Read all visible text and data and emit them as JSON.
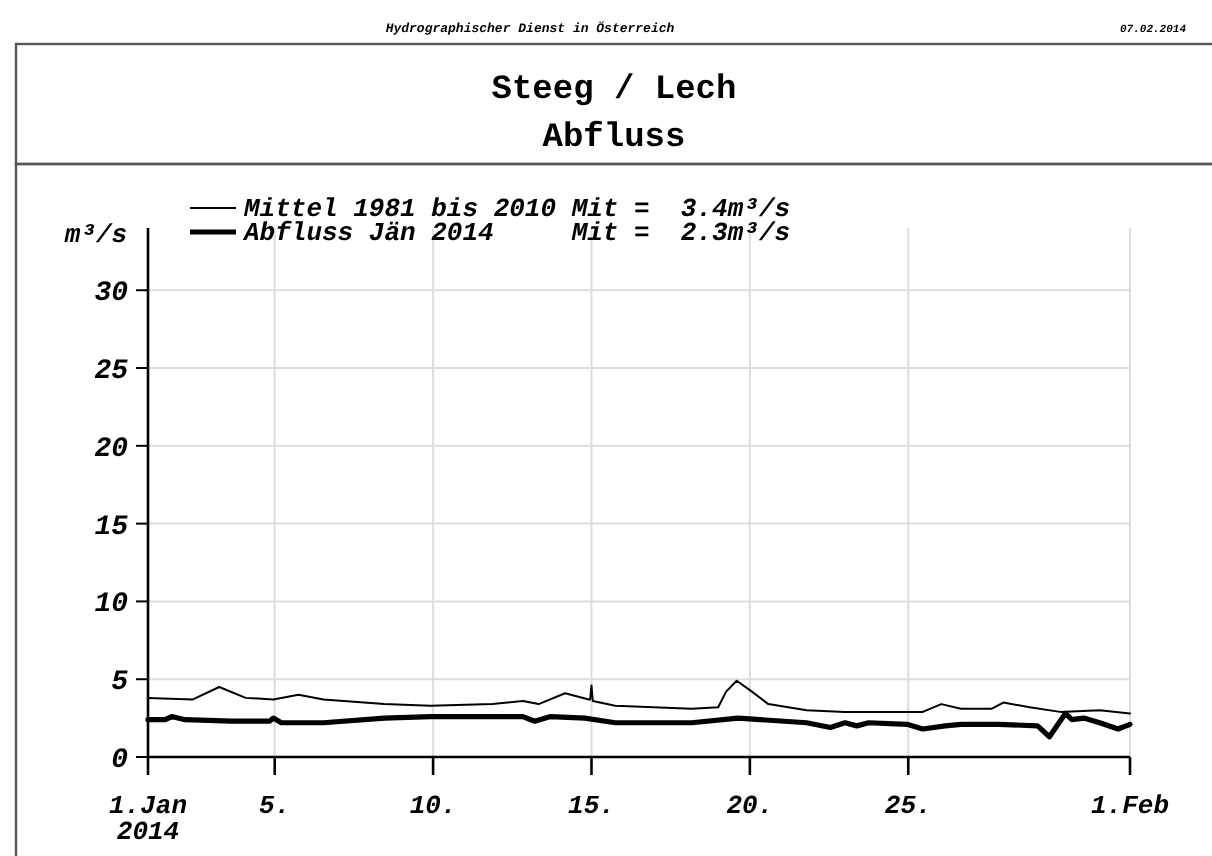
{
  "chart_data": {
    "type": "line",
    "title": "Steeg / Lech",
    "subtitle": "Abfluss",
    "ylabel": "m³/s",
    "annotations": [
      "Hydrographischer Dienst in Österreich",
      "07.02.2014"
    ],
    "xlim": [
      "2014-01-01",
      "2014-02-01"
    ],
    "xticks": [
      {
        "value": "2014-01-01",
        "label": "1.Jan\n2014"
      },
      {
        "value": "2014-01-05",
        "label": "5."
      },
      {
        "value": "2014-01-10",
        "label": "10."
      },
      {
        "value": "2014-01-15",
        "label": "15."
      },
      {
        "value": "2014-01-20",
        "label": "20."
      },
      {
        "value": "2014-01-25",
        "label": "25."
      },
      {
        "value": "2014-02-01",
        "label": "1.Feb"
      }
    ],
    "ylim": [
      0,
      34
    ],
    "yticks": [
      0,
      5,
      10,
      15,
      20,
      25,
      30
    ],
    "grid": true,
    "legend": "top",
    "line_style": "solid",
    "series": [
      {
        "name": "Mittel 1981 bis 2010 Mit =  3.4m³/s",
        "color": "#000000",
        "x": [
          "2014-01-01T00:00",
          "2014-01-02T10:00",
          "2014-01-03T06:00",
          "2014-01-04T02:00",
          "2014-01-04T23:00",
          "2014-01-05T18:00",
          "2014-01-06T13:00",
          "2014-01-08T11:00",
          "2014-01-09T22:00",
          "2014-01-11T21:00",
          "2014-01-12T20:00",
          "2014-01-13T08:00",
          "2014-01-14T04:00",
          "2014-01-14T22:00",
          "2014-01-14T23:00",
          "2014-01-15T00:00",
          "2014-01-15T01:00",
          "2014-01-15T18:00",
          "2014-01-18T04:00",
          "2014-01-19T00:00",
          "2014-01-19T06:00",
          "2014-01-19T14:00",
          "2014-01-20T00:00",
          "2014-01-20T14:00",
          "2014-01-21T19:00",
          "2014-01-23T00:00",
          "2014-01-25T11:00",
          "2014-01-26T01:00",
          "2014-01-26T16:00",
          "2014-01-27T15:00",
          "2014-01-28T00:00",
          "2014-01-28T20:00",
          "2014-01-29T19:00",
          "2014-01-31T01:00",
          "2014-02-01T00:00"
        ],
        "values": [
          3.8,
          3.7,
          4.5,
          3.8,
          3.7,
          4.0,
          3.7,
          3.4,
          3.3,
          3.4,
          3.6,
          3.4,
          4.1,
          3.7,
          3.7,
          4.6,
          3.6,
          3.3,
          3.1,
          3.2,
          4.2,
          4.9,
          4.3,
          3.4,
          3.0,
          2.9,
          2.9,
          3.4,
          3.1,
          3.1,
          3.5,
          3.2,
          2.9,
          3.0,
          2.8
        ]
      },
      {
        "name": "Abfluss Jän 2014     Mit =  2.3m³/s",
        "color": "#000000",
        "x": [
          "2014-01-01T00:00",
          "2014-01-01T13:00",
          "2014-01-01T18:00",
          "2014-01-02T04:00",
          "2014-01-03T15:00",
          "2014-01-04T20:00",
          "2014-01-04T23:00",
          "2014-01-05T05:00",
          "2014-01-06T13:00",
          "2014-01-08T11:00",
          "2014-01-09T22:00",
          "2014-01-11T21:00",
          "2014-01-12T20:00",
          "2014-01-13T05:00",
          "2014-01-13T17:00",
          "2014-01-14T19:00",
          "2014-01-15T18:00",
          "2014-01-18T04:00",
          "2014-01-19T15:00",
          "2014-01-21T19:00",
          "2014-01-22T13:00",
          "2014-01-23T00:00",
          "2014-01-23T09:00",
          "2014-01-23T18:00",
          "2014-01-24T23:00",
          "2014-01-25T11:00",
          "2014-01-26T04:00",
          "2014-01-26T16:00",
          "2014-01-27T21:00",
          "2014-01-29T02:00",
          "2014-01-29T11:00",
          "2014-01-29T23:00",
          "2014-01-30T04:00",
          "2014-01-30T13:00",
          "2014-01-31T01:00",
          "2014-01-31T15:00",
          "2014-02-01T00:00"
        ],
        "values": [
          2.4,
          2.4,
          2.6,
          2.4,
          2.3,
          2.3,
          2.5,
          2.2,
          2.2,
          2.5,
          2.6,
          2.6,
          2.6,
          2.3,
          2.6,
          2.5,
          2.2,
          2.2,
          2.5,
          2.2,
          1.9,
          2.2,
          2.0,
          2.2,
          2.1,
          1.8,
          2.0,
          2.1,
          2.1,
          2.0,
          1.3,
          2.8,
          2.4,
          2.5,
          2.2,
          1.8,
          2.1
        ]
      }
    ]
  }
}
